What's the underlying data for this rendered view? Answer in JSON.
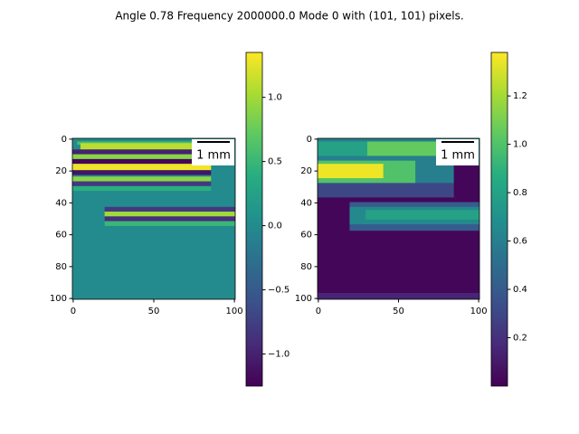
{
  "title": "Angle 0.78 Frequency 2000000.0 Mode 0 with (101, 101) pixels.",
  "chart_data": [
    {
      "type": "heatmap",
      "colormap": "viridis",
      "xlim": [
        -0.5,
        100.5
      ],
      "ylim": [
        100.5,
        -0.5
      ],
      "xticks": [
        0,
        50,
        100
      ],
      "yticks": [
        0,
        20,
        40,
        60,
        80,
        100
      ],
      "clim": [
        -1.25,
        1.35
      ],
      "cticks": [
        {
          "value": -1.0,
          "label": "−1.0"
        },
        {
          "value": -0.5,
          "label": "−0.5"
        },
        {
          "value": 0.0,
          "label": "0.0"
        },
        0.5,
        {
          "value": 1.0,
          "label": "1.0"
        }
      ],
      "scalebar": "1 mm",
      "background": 0.0,
      "regions": [
        {
          "x": [
            3,
            85
          ],
          "y": [
            2,
            3
          ],
          "value": 0.6
        },
        {
          "x": [
            5,
            85
          ],
          "y": [
            3,
            6
          ],
          "value": 1.1
        },
        {
          "x": [
            0,
            85
          ],
          "y": [
            7,
            9
          ],
          "value": -1.0
        },
        {
          "x": [
            0,
            85
          ],
          "y": [
            10,
            12
          ],
          "value": 0.9
        },
        {
          "x": [
            0,
            85
          ],
          "y": [
            13,
            15
          ],
          "value": -1.2
        },
        {
          "x": [
            0,
            85
          ],
          "y": [
            16,
            19
          ],
          "value": 1.3
        },
        {
          "x": [
            0,
            85
          ],
          "y": [
            20,
            22
          ],
          "value": -1.1
        },
        {
          "x": [
            0,
            85
          ],
          "y": [
            24,
            26
          ],
          "value": 0.9
        },
        {
          "x": [
            0,
            85
          ],
          "y": [
            27,
            29
          ],
          "value": -0.8
        },
        {
          "x": [
            0,
            85
          ],
          "y": [
            30,
            32
          ],
          "value": 0.4
        },
        {
          "x": [
            20,
            100
          ],
          "y": [
            43,
            45
          ],
          "value": -0.8
        },
        {
          "x": [
            20,
            100
          ],
          "y": [
            46,
            48
          ],
          "value": 1.0
        },
        {
          "x": [
            20,
            100
          ],
          "y": [
            49,
            51
          ],
          "value": -0.9
        },
        {
          "x": [
            20,
            100
          ],
          "y": [
            52,
            54
          ],
          "value": 0.5
        }
      ]
    },
    {
      "type": "heatmap",
      "colormap": "viridis",
      "xlim": [
        -0.5,
        100.5
      ],
      "ylim": [
        100.5,
        -0.5
      ],
      "xticks": [
        0,
        50,
        100
      ],
      "yticks": [
        0,
        20,
        40,
        60,
        80,
        100
      ],
      "clim": [
        0.0,
        1.38
      ],
      "cticks": [
        0.2,
        0.4,
        0.6,
        0.8,
        {
          "value": 1.0,
          "label": "1.0"
        },
        1.2
      ],
      "scalebar": "1 mm",
      "background": 0.02,
      "regions": [
        {
          "x": [
            0,
            85
          ],
          "y": [
            0,
            36
          ],
          "value": 0.6
        },
        {
          "x": [
            0,
            85
          ],
          "y": [
            28,
            36
          ],
          "value": 0.3
        },
        {
          "x": [
            30,
            85
          ],
          "y": [
            2,
            10
          ],
          "value": 1.05
        },
        {
          "x": [
            0,
            30
          ],
          "y": [
            2,
            10
          ],
          "value": 0.8
        },
        {
          "x": [
            0,
            60
          ],
          "y": [
            14,
            27
          ],
          "value": 1.0
        },
        {
          "x": [
            0,
            40
          ],
          "y": [
            16,
            24
          ],
          "value": 1.35
        },
        {
          "x": [
            85,
            100
          ],
          "y": [
            0,
            17
          ],
          "value": 0.6
        },
        {
          "x": [
            85,
            100
          ],
          "y": [
            17,
            36
          ],
          "value": 0.02
        },
        {
          "x": [
            20,
            100
          ],
          "y": [
            40,
            57
          ],
          "value": 0.4
        },
        {
          "x": [
            20,
            100
          ],
          "y": [
            43,
            53
          ],
          "value": 0.65
        },
        {
          "x": [
            30,
            100
          ],
          "y": [
            45,
            50
          ],
          "value": 0.8
        },
        {
          "x": [
            0,
            100
          ],
          "y": [
            97,
            100
          ],
          "value": 0.15
        }
      ]
    }
  ]
}
